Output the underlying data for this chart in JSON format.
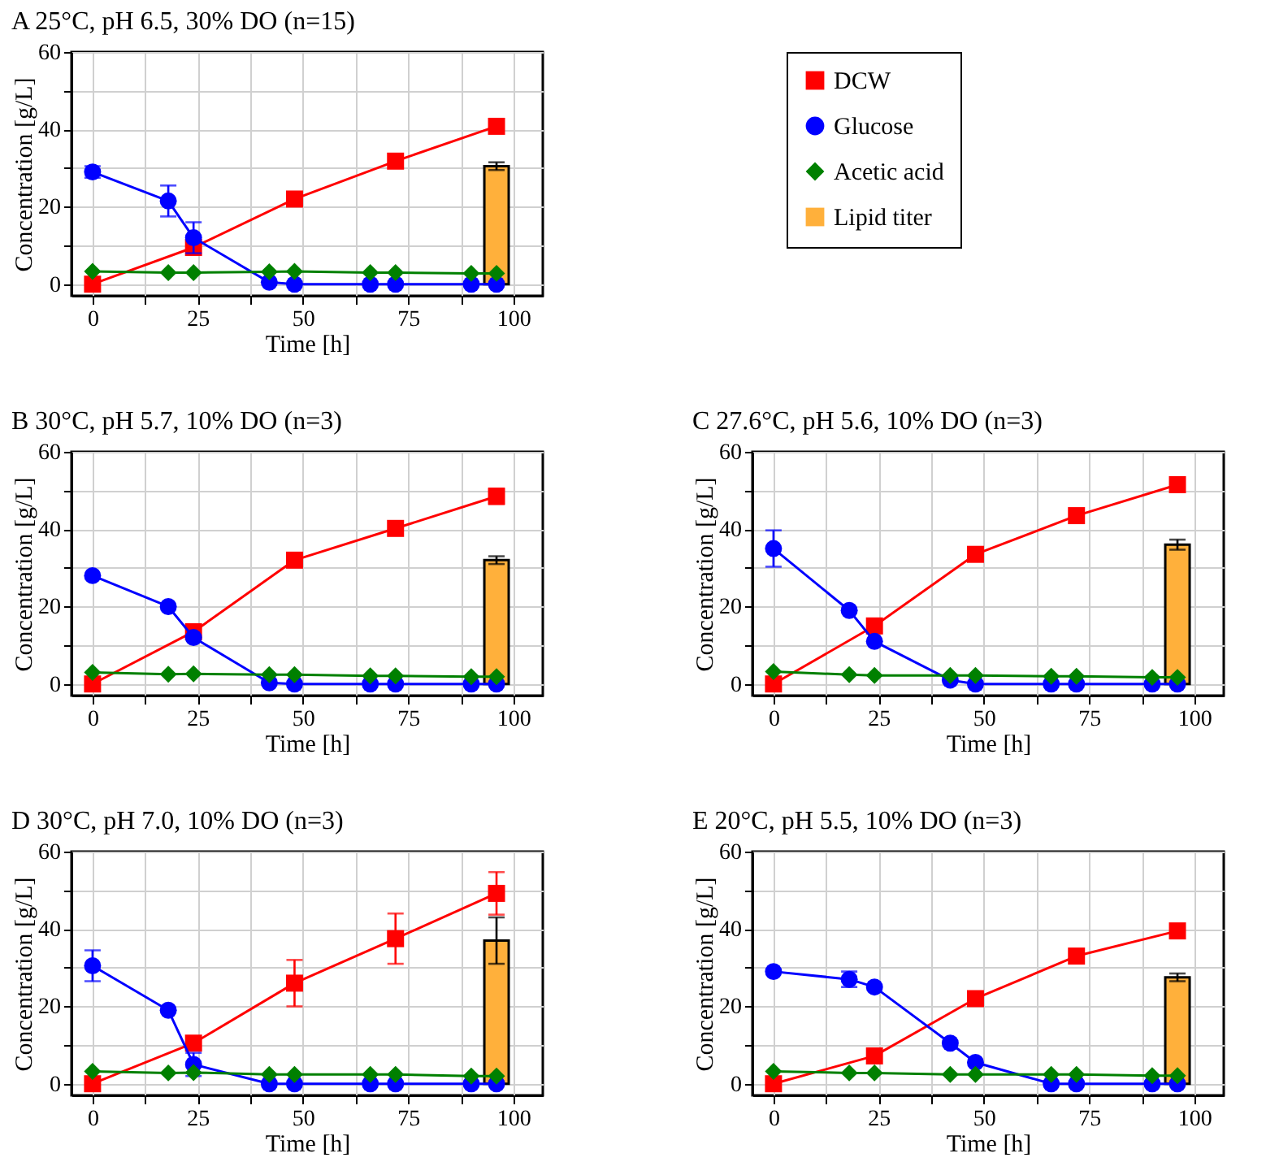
{
  "chart_data": [
    {
      "type": "line",
      "title": "A    25°C, pH 6.5, 30% DO (n=15)",
      "xlabel": "Time [h]",
      "ylabel": "Concentration [g/L]",
      "xlim": [
        -5,
        107
      ],
      "ylim": [
        -3,
        60
      ],
      "xticks": [
        0,
        {
          "value": 12.5,
          "label": null
        },
        25,
        {
          "value": 37.5,
          "label": null
        },
        50,
        {
          "value": 62.5,
          "label": null
        },
        75,
        {
          "value": 87.5,
          "label": null
        },
        100
      ],
      "yticks": [
        0,
        {
          "value": 10,
          "label": null
        },
        20,
        {
          "value": 30,
          "label": null
        },
        40,
        {
          "value": 50,
          "label": null
        },
        60
      ],
      "grid": true,
      "legend": "right",
      "x": [
        0,
        18,
        24,
        42,
        48,
        66,
        72,
        90,
        96
      ],
      "series": [
        {
          "name": "DCW",
          "marker": "square",
          "color": "#ff0000",
          "x": [
            0,
            24,
            48,
            72,
            96
          ],
          "values": [
            0,
            9.5,
            22,
            31.8,
            40.8
          ]
        },
        {
          "name": "Glucose",
          "marker": "circle",
          "color": "#0000ff",
          "values": [
            29,
            21.5,
            12,
            0.5,
            0,
            0,
            0,
            0,
            0
          ],
          "errors": [
            1.5,
            4,
            4,
            null,
            null,
            null,
            null,
            null,
            null
          ]
        },
        {
          "name": "Acetic acid",
          "marker": "diamond",
          "color": "#008000",
          "values": [
            3.3,
            3,
            3,
            3.2,
            3.3,
            3,
            3,
            2.8,
            2.8
          ]
        },
        {
          "name": "Lipid titer",
          "type": "bar",
          "color": "#ffb03b",
          "x": [
            96
          ],
          "values": [
            30.5
          ],
          "errors": [
            1
          ]
        }
      ]
    },
    {
      "type": "line",
      "title": "B    30°C, pH 5.7, 10% DO (n=3)",
      "xlabel": "Time [h]",
      "ylabel": "Concentration [g/L]",
      "xlim": [
        -5,
        107
      ],
      "ylim": [
        -3,
        60
      ],
      "xticks": [
        0,
        {
          "value": 12.5,
          "label": null
        },
        25,
        {
          "value": 37.5,
          "label": null
        },
        50,
        {
          "value": 62.5,
          "label": null
        },
        75,
        {
          "value": 87.5,
          "label": null
        },
        100
      ],
      "yticks": [
        0,
        {
          "value": 10,
          "label": null
        },
        20,
        {
          "value": 30,
          "label": null
        },
        40,
        {
          "value": 50,
          "label": null
        },
        60
      ],
      "grid": true,
      "x": [
        0,
        18,
        24,
        42,
        48,
        66,
        72,
        90,
        96
      ],
      "series": [
        {
          "marker": "square",
          "color": "#ff0000",
          "x": [
            0,
            24,
            48,
            72,
            96
          ],
          "values": [
            0,
            13.5,
            32,
            40.2,
            48.5
          ],
          "errors": [
            null,
            null,
            null,
            null,
            2
          ]
        },
        {
          "marker": "circle",
          "color": "#0000ff",
          "values": [
            28,
            20,
            12,
            0.3,
            0,
            0,
            0,
            0,
            0
          ]
        },
        {
          "marker": "diamond",
          "color": "#008000",
          "values": [
            3,
            2.5,
            2.6,
            2.4,
            2.4,
            2.1,
            2.1,
            1.9,
            1.9
          ]
        },
        {
          "type": "bar",
          "color": "#ffb03b",
          "x": [
            96
          ],
          "values": [
            32
          ],
          "errors": [
            1
          ]
        }
      ]
    },
    {
      "type": "line",
      "title": "C    27.6°C, pH 5.6, 10% DO (n=3)",
      "xlabel": "Time [h]",
      "ylabel": "Concentration [g/L]",
      "xlim": [
        -5,
        107
      ],
      "ylim": [
        -3,
        60
      ],
      "xticks": [
        0,
        {
          "value": 12.5,
          "label": null
        },
        25,
        {
          "value": 37.5,
          "label": null
        },
        50,
        {
          "value": 62.5,
          "label": null
        },
        75,
        {
          "value": 87.5,
          "label": null
        },
        100
      ],
      "yticks": [
        0,
        {
          "value": 10,
          "label": null
        },
        20,
        {
          "value": 30,
          "label": null
        },
        40,
        {
          "value": 50,
          "label": null
        },
        60
      ],
      "grid": true,
      "x": [
        0,
        18,
        24,
        42,
        48,
        66,
        72,
        90,
        96
      ],
      "series": [
        {
          "marker": "square",
          "color": "#ff0000",
          "x": [
            0,
            24,
            48,
            72,
            96
          ],
          "values": [
            0,
            15,
            33.5,
            43.5,
            51.5
          ]
        },
        {
          "marker": "circle",
          "color": "#0000ff",
          "values": [
            35,
            19,
            11,
            1,
            0,
            0,
            0,
            0,
            0
          ],
          "errors": [
            4.7,
            null,
            null,
            null,
            null,
            null,
            null,
            null,
            null
          ]
        },
        {
          "marker": "diamond",
          "color": "#008000",
          "values": [
            3.2,
            2.4,
            2.2,
            2.2,
            2.2,
            2,
            2,
            1.7,
            1.7
          ]
        },
        {
          "type": "bar",
          "color": "#ffb03b",
          "x": [
            96
          ],
          "values": [
            36
          ],
          "errors": [
            1.3
          ]
        }
      ]
    },
    {
      "type": "line",
      "title": "D    30°C, pH 7.0, 10% DO (n=3)",
      "xlabel": "Time [h]",
      "ylabel": "Concentration [g/L]",
      "xlim": [
        -5,
        107
      ],
      "ylim": [
        -3,
        60
      ],
      "xticks": [
        0,
        {
          "value": 12.5,
          "label": null
        },
        25,
        {
          "value": 37.5,
          "label": null
        },
        50,
        {
          "value": 62.5,
          "label": null
        },
        75,
        {
          "value": 87.5,
          "label": null
        },
        100
      ],
      "yticks": [
        0,
        {
          "value": 10,
          "label": null
        },
        20,
        {
          "value": 30,
          "label": null
        },
        40,
        {
          "value": 50,
          "label": null
        },
        60
      ],
      "grid": true,
      "x": [
        0,
        18,
        24,
        42,
        48,
        66,
        72,
        90,
        96
      ],
      "series": [
        {
          "marker": "square",
          "color": "#ff0000",
          "x": [
            0,
            24,
            48,
            72,
            96
          ],
          "values": [
            0,
            10.5,
            26,
            37.5,
            49.2
          ],
          "errors": [
            null,
            null,
            6,
            6.5,
            5.5
          ]
        },
        {
          "marker": "circle",
          "color": "#0000ff",
          "values": [
            30.5,
            19,
            5,
            0,
            0,
            0,
            0,
            0,
            0
          ],
          "errors": [
            4,
            null,
            3,
            null,
            null,
            null,
            null,
            null,
            null
          ]
        },
        {
          "marker": "diamond",
          "color": "#008000",
          "values": [
            3.2,
            2.8,
            2.9,
            2.4,
            2.4,
            2.4,
            2.4,
            2,
            2
          ]
        },
        {
          "type": "bar",
          "color": "#ffb03b",
          "x": [
            96
          ],
          "values": [
            37
          ],
          "errors": [
            6
          ]
        }
      ]
    },
    {
      "type": "line",
      "title": "E    20°C, pH 5.5, 10% DO (n=3)",
      "xlabel": "Time [h]",
      "ylabel": "Concentration [g/L]",
      "xlim": [
        -5,
        107
      ],
      "ylim": [
        -3,
        60
      ],
      "xticks": [
        0,
        {
          "value": 12.5,
          "label": null
        },
        25,
        {
          "value": 37.5,
          "label": null
        },
        50,
        {
          "value": 62.5,
          "label": null
        },
        75,
        {
          "value": 87.5,
          "label": null
        },
        100
      ],
      "yticks": [
        0,
        {
          "value": 10,
          "label": null
        },
        20,
        {
          "value": 30,
          "label": null
        },
        40,
        {
          "value": 50,
          "label": null
        },
        60
      ],
      "grid": true,
      "x": [
        0,
        18,
        24,
        42,
        48,
        66,
        72,
        90,
        96
      ],
      "series": [
        {
          "marker": "square",
          "color": "#ff0000",
          "x": [
            0,
            24,
            48,
            72,
            96
          ],
          "values": [
            0,
            7.2,
            22,
            33,
            39.5
          ]
        },
        {
          "marker": "circle",
          "color": "#0000ff",
          "values": [
            29,
            27,
            25,
            10.5,
            5.5,
            0,
            0,
            0,
            0
          ],
          "errors": [
            null,
            2,
            null,
            null,
            null,
            null,
            null,
            null,
            null
          ]
        },
        {
          "marker": "diamond",
          "color": "#008000",
          "values": [
            3.2,
            2.8,
            2.8,
            2.4,
            2.4,
            2.4,
            2.4,
            2.1,
            2.1
          ]
        },
        {
          "type": "bar",
          "color": "#ffb03b",
          "x": [
            96
          ],
          "values": [
            27.5
          ],
          "errors": [
            1
          ]
        }
      ]
    }
  ]
}
